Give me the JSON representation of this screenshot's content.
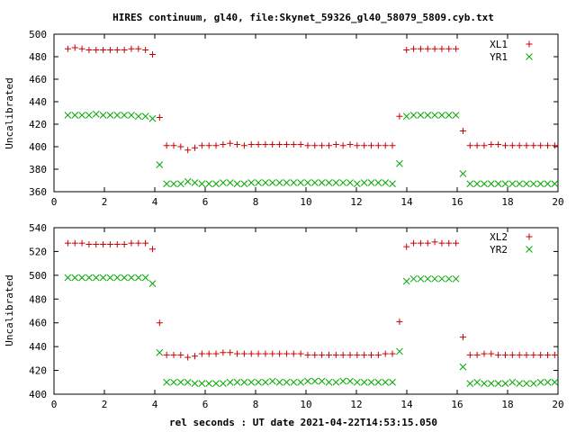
{
  "chart_data": [
    {
      "type": "scatter",
      "title": "HIRES continuum, gl40, file:Skynet_59326_gl40_58079_5809.cyb.txt",
      "xlabel": "",
      "ylabel": "Uncalibrated",
      "xlim": [
        0,
        20
      ],
      "ylim": [
        360,
        500
      ],
      "xticks": [
        "0",
        "2",
        "4",
        "6",
        "8",
        "10",
        "12",
        "14",
        "16",
        "18",
        "20"
      ],
      "yticks": [
        "360",
        "380",
        "400",
        "420",
        "440",
        "460",
        "480",
        "500"
      ],
      "legend": "top-right",
      "x": [
        0.55,
        0.83,
        1.11,
        1.39,
        1.67,
        1.95,
        2.23,
        2.51,
        2.79,
        3.07,
        3.35,
        3.63,
        3.91,
        4.19,
        4.47,
        4.75,
        5.03,
        5.31,
        5.59,
        5.87,
        6.15,
        6.43,
        6.71,
        6.99,
        7.27,
        7.55,
        7.83,
        8.11,
        8.39,
        8.67,
        8.95,
        9.23,
        9.51,
        9.79,
        10.07,
        10.35,
        10.63,
        10.91,
        11.19,
        11.47,
        11.75,
        12.03,
        12.31,
        12.59,
        12.87,
        13.15,
        13.43,
        13.71,
        13.99,
        14.27,
        14.55,
        14.83,
        15.11,
        15.39,
        15.67,
        15.95,
        16.23,
        16.51,
        16.79,
        17.07,
        17.35,
        17.63,
        17.91,
        18.19,
        18.47,
        18.75,
        19.03,
        19.31,
        19.59,
        19.87
      ],
      "series": [
        {
          "name": "XL1",
          "marker": "plus",
          "color": "#cc0000",
          "values": [
            487,
            488,
            487,
            486,
            486,
            486,
            486,
            486,
            486,
            487,
            487,
            486,
            482,
            426,
            401,
            401,
            400,
            397,
            399,
            401,
            401,
            401,
            402,
            403,
            402,
            401,
            402,
            402,
            402,
            402,
            402,
            402,
            402,
            402,
            401,
            401,
            401,
            401,
            402,
            401,
            402,
            401,
            401,
            401,
            401,
            401,
            401,
            427,
            486,
            487,
            487,
            487,
            487,
            487,
            487,
            487,
            414,
            401,
            401,
            401,
            402,
            402,
            401,
            401,
            401,
            401,
            401,
            401,
            401,
            401
          ]
        },
        {
          "name": "YR1",
          "marker": "cross",
          "color": "#00aa00",
          "values": [
            428,
            428,
            428,
            428,
            429,
            428,
            428,
            428,
            428,
            428,
            427,
            427,
            425,
            384,
            367,
            367,
            367,
            369,
            368,
            367,
            367,
            367,
            368,
            368,
            367,
            367,
            368,
            368,
            368,
            368,
            368,
            368,
            368,
            368,
            368,
            368,
            368,
            368,
            368,
            368,
            368,
            367,
            368,
            368,
            368,
            368,
            367,
            385,
            427,
            428,
            428,
            428,
            428,
            428,
            428,
            428,
            376,
            367,
            367,
            367,
            367,
            367,
            367,
            367,
            367,
            367,
            367,
            367,
            367,
            367
          ]
        }
      ]
    },
    {
      "type": "scatter",
      "title": "",
      "xlabel": "rel seconds : UT date 2021-04-22T14:53:15.050",
      "ylabel": "Uncalibrated",
      "xlim": [
        0,
        20
      ],
      "ylim": [
        400,
        540
      ],
      "xticks": [
        "0",
        "2",
        "4",
        "6",
        "8",
        "10",
        "12",
        "14",
        "16",
        "18",
        "20"
      ],
      "yticks": [
        "400",
        "420",
        "440",
        "460",
        "480",
        "500",
        "520",
        "540"
      ],
      "legend": "top-right",
      "x": [
        0.55,
        0.83,
        1.11,
        1.39,
        1.67,
        1.95,
        2.23,
        2.51,
        2.79,
        3.07,
        3.35,
        3.63,
        3.91,
        4.19,
        4.47,
        4.75,
        5.03,
        5.31,
        5.59,
        5.87,
        6.15,
        6.43,
        6.71,
        6.99,
        7.27,
        7.55,
        7.83,
        8.11,
        8.39,
        8.67,
        8.95,
        9.23,
        9.51,
        9.79,
        10.07,
        10.35,
        10.63,
        10.91,
        11.19,
        11.47,
        11.75,
        12.03,
        12.31,
        12.59,
        12.87,
        13.15,
        13.43,
        13.71,
        13.99,
        14.27,
        14.55,
        14.83,
        15.11,
        15.39,
        15.67,
        15.95,
        16.23,
        16.51,
        16.79,
        17.07,
        17.35,
        17.63,
        17.91,
        18.19,
        18.47,
        18.75,
        19.03,
        19.31,
        19.59,
        19.87
      ],
      "series": [
        {
          "name": "XL2",
          "marker": "plus",
          "color": "#cc0000",
          "values": [
            527,
            527,
            527,
            526,
            526,
            526,
            526,
            526,
            526,
            527,
            527,
            527,
            522,
            460,
            433,
            433,
            433,
            431,
            432,
            434,
            434,
            434,
            435,
            435,
            434,
            434,
            434,
            434,
            434,
            434,
            434,
            434,
            434,
            434,
            433,
            433,
            433,
            433,
            433,
            433,
            433,
            433,
            433,
            433,
            433,
            434,
            434,
            461,
            524,
            527,
            527,
            527,
            528,
            527,
            527,
            527,
            448,
            433,
            433,
            434,
            434,
            433,
            433,
            433,
            433,
            433,
            433,
            433,
            433,
            433
          ]
        },
        {
          "name": "YR2",
          "marker": "cross",
          "color": "#00aa00",
          "values": [
            498,
            498,
            498,
            498,
            498,
            498,
            498,
            498,
            498,
            498,
            498,
            498,
            493,
            435,
            410,
            410,
            410,
            410,
            409,
            409,
            409,
            409,
            409,
            410,
            410,
            410,
            410,
            410,
            410,
            411,
            410,
            410,
            410,
            410,
            411,
            411,
            411,
            410,
            410,
            411,
            411,
            410,
            410,
            410,
            410,
            410,
            410,
            436,
            495,
            497,
            497,
            497,
            497,
            497,
            497,
            497,
            423,
            409,
            410,
            409,
            409,
            409,
            409,
            410,
            409,
            409,
            409,
            410,
            410,
            410
          ]
        }
      ]
    }
  ]
}
